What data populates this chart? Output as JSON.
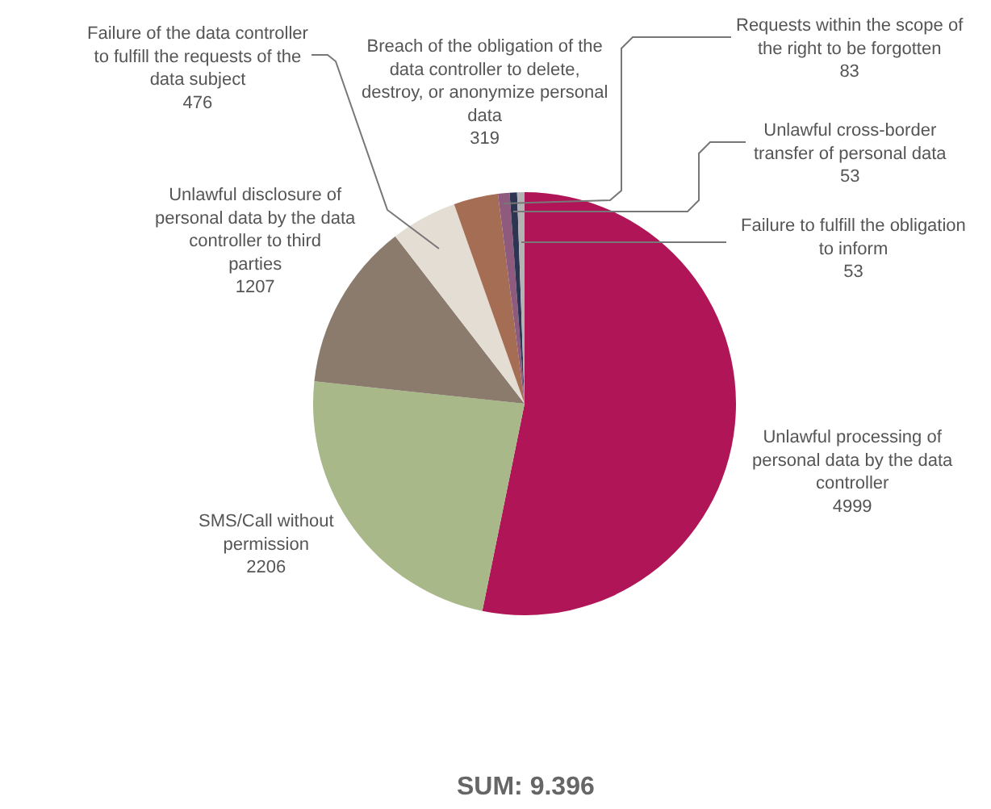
{
  "chart_data": {
    "type": "pie",
    "categories": [
      "Unlawful processing of personal data by the data controller",
      "SMS/Call without permission",
      "Unlawful disclosure of personal data by the data controller to third parties",
      "Failure of the data controller to fulfill the requests of the data subject",
      "Breach of the obligation of the data controller to delete, destroy, or anonymize personal data",
      "Requests within the scope of the right to be forgotten",
      "Unlawful cross-border transfer of personal data",
      "Failure to fulfill the obligation to inform"
    ],
    "values": [
      4999,
      2206,
      1207,
      476,
      319,
      83,
      53,
      53
    ],
    "colors": [
      "#b01657",
      "#a8b888",
      "#8a7b6d",
      "#e4ddd3",
      "#a66d55",
      "#8e5a7e",
      "#2e3552",
      "#b3b3b3"
    ],
    "data_labels": true,
    "annotations": [
      "SUM: 9.396"
    ]
  }
}
